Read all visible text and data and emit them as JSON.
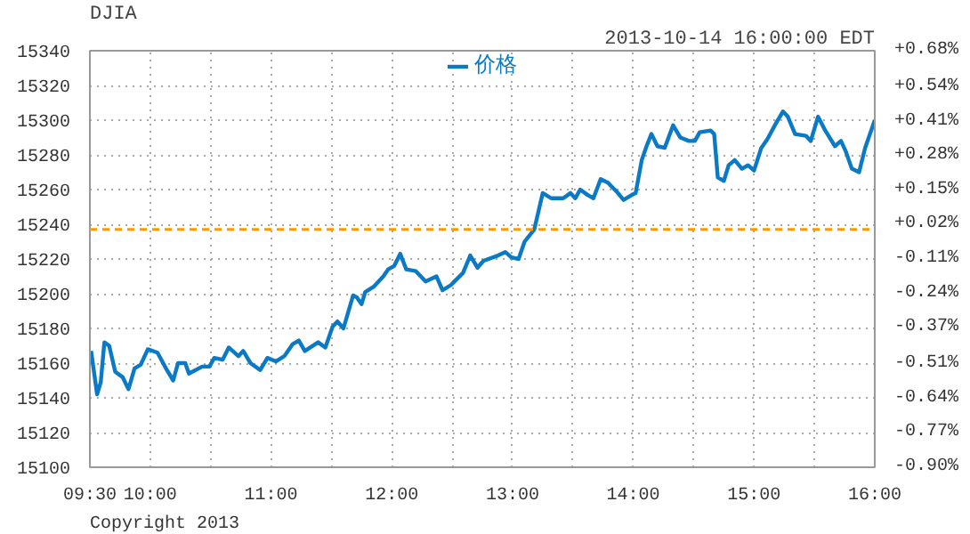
{
  "chart_data": {
    "type": "line",
    "title": "DJIA",
    "subtitle": "2013-10-14 16:00:00 EDT",
    "annotations": [
      "Copyright 2013"
    ],
    "x": [
      9.51,
      9.53,
      9.56,
      9.59,
      9.62,
      9.66,
      9.71,
      9.77,
      9.82,
      9.87,
      9.92,
      9.98,
      10.06,
      10.13,
      10.19,
      10.23,
      10.29,
      10.32,
      10.43,
      10.49,
      10.53,
      10.6,
      10.65,
      10.73,
      10.77,
      10.83,
      10.91,
      10.97,
      11.04,
      11.11,
      11.18,
      11.23,
      11.28,
      11.39,
      11.45,
      11.51,
      11.55,
      11.6,
      11.68,
      11.71,
      11.75,
      11.78,
      11.85,
      11.93,
      11.97,
      12.02,
      12.07,
      12.12,
      12.2,
      12.28,
      12.37,
      12.42,
      12.49,
      12.59,
      12.65,
      12.71,
      12.76,
      12.88,
      12.94,
      12.99,
      13.05,
      13.1,
      13.18,
      13.25,
      13.32,
      13.42,
      13.48,
      13.52,
      13.56,
      13.62,
      13.67,
      13.73,
      13.79,
      13.86,
      13.92,
      13.99,
      14.02,
      14.07,
      14.11,
      14.15,
      14.2,
      14.26,
      14.33,
      14.39,
      14.46,
      14.51,
      14.55,
      14.64,
      14.67,
      14.7,
      14.75,
      14.79,
      14.84,
      14.9,
      14.95,
      15.0,
      15.06,
      15.11,
      15.18,
      15.24,
      15.28,
      15.34,
      15.43,
      15.47,
      15.53,
      15.59,
      15.67,
      15.72,
      15.76,
      15.81,
      15.87,
      15.92,
      16.0
    ],
    "series": [
      {
        "name": "价格",
        "color": "#0a7ac6",
        "values": [
          15167,
          15157,
          15142,
          15149,
          15172,
          15170,
          15155,
          15152,
          15145,
          15157,
          15159,
          15168,
          15166,
          15157,
          15150,
          15160,
          15160,
          15154,
          15158,
          15158,
          15163,
          15162,
          15169,
          15164,
          15167,
          15160,
          15156,
          15163,
          15161,
          15164,
          15171,
          15173,
          15167,
          15172,
          15169,
          15181,
          15184,
          15180,
          15199,
          15198,
          15194,
          15201,
          15204,
          15210,
          15214,
          15216,
          15223,
          15214,
          15213,
          15207,
          15210,
          15202,
          15205,
          15212,
          15222,
          15215,
          15219,
          15222,
          15224,
          15221,
          15220,
          15230,
          15237,
          15258,
          15255,
          15255,
          15258,
          15255,
          15260,
          15257,
          15255,
          15266,
          15264,
          15259,
          15254,
          15257,
          15258,
          15277,
          15285,
          15292,
          15285,
          15284,
          15297,
          15290,
          15288,
          15288,
          15293,
          15294,
          15292,
          15267,
          15265,
          15274,
          15277,
          15272,
          15274,
          15271,
          15284,
          15289,
          15298,
          15305,
          15302,
          15292,
          15291,
          15288,
          15302,
          15294,
          15285,
          15288,
          15282,
          15272,
          15270,
          15284,
          15300
        ]
      }
    ],
    "xlim": [
      9.5,
      16
    ],
    "xticks": [
      {
        "value": 9.5,
        "label": "09:30"
      },
      {
        "value": 10,
        "label": "10:00"
      },
      {
        "value": 10.5,
        "label": null
      },
      {
        "value": 11,
        "label": "11:00"
      },
      {
        "value": 11.5,
        "label": null
      },
      {
        "value": 12,
        "label": "12:00"
      },
      {
        "value": 12.5,
        "label": null
      },
      {
        "value": 13,
        "label": "13:00"
      },
      {
        "value": 13.5,
        "label": null
      },
      {
        "value": 14,
        "label": "14:00"
      },
      {
        "value": 14.5,
        "label": null
      },
      {
        "value": 15,
        "label": "15:00"
      },
      {
        "value": 15.5,
        "label": null
      },
      {
        "value": 16,
        "label": "16:00"
      }
    ],
    "ylim": [
      15100,
      15340
    ],
    "yticks": [
      15100,
      15120,
      15140,
      15160,
      15180,
      15200,
      15220,
      15240,
      15260,
      15280,
      15300,
      15320,
      15340
    ],
    "y2lim": [
      -0.9,
      0.68
    ],
    "y2ticks": [
      {
        "value": -0.9,
        "label": "-0.90%"
      },
      {
        "value": -0.77,
        "label": "-0.77%"
      },
      {
        "value": -0.64,
        "label": "-0.64%"
      },
      {
        "value": -0.51,
        "label": "-0.51%"
      },
      {
        "value": -0.37,
        "label": "-0.37%"
      },
      {
        "value": -0.24,
        "label": "-0.24%"
      },
      {
        "value": -0.11,
        "label": "-0.11%"
      },
      {
        "value": 0.02,
        "label": "+0.02%"
      },
      {
        "value": 0.15,
        "label": "+0.15%"
      },
      {
        "value": 0.28,
        "label": "+0.28%"
      },
      {
        "value": 0.41,
        "label": "+0.41%"
      },
      {
        "value": 0.54,
        "label": "+0.54%"
      },
      {
        "value": 0.68,
        "label": "+0.68%"
      }
    ],
    "ref_lines": [
      {
        "axis": "y",
        "value": 15237,
        "color": "#ff9900",
        "line_style": "dashed"
      }
    ],
    "grid": true,
    "legend": "top",
    "marker": "none",
    "line_style": "solid"
  }
}
